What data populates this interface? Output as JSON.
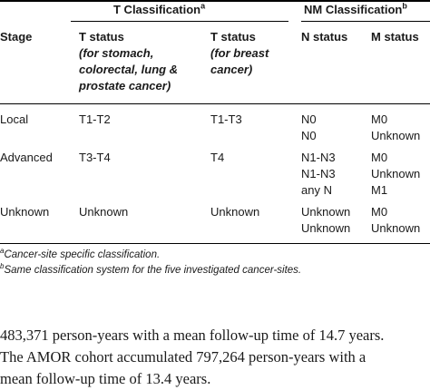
{
  "header": {
    "group_t": "T Classification",
    "group_t_sup": "a",
    "group_nm": "NM Classification",
    "group_nm_sup": "b",
    "col_stage": "Stage",
    "col_t1_title": "T status",
    "col_t1_sub": [
      "(for stomach,",
      "colorectal, lung &",
      "prostate cancer)"
    ],
    "col_t2_title": "T status",
    "col_t2_sub": [
      "(for breast",
      "cancer)"
    ],
    "col_n": "N status",
    "col_m": "M status"
  },
  "rows": [
    {
      "stage": "Local",
      "t1": "T1-T2",
      "t2": "T1-T3",
      "n": [
        "N0",
        "N0"
      ],
      "m": [
        "M0",
        "Unknown"
      ]
    },
    {
      "stage": "Advanced",
      "t1": "T3-T4",
      "t2": "T4",
      "n": [
        "N1-N3",
        "N1-N3",
        "any N"
      ],
      "m": [
        "M0",
        "Unknown",
        "M1"
      ]
    },
    {
      "stage": "Unknown",
      "t1": "Unknown",
      "t2": "Unknown",
      "n": [
        "Unknown",
        "Unknown"
      ],
      "m": [
        "M0",
        "Unknown"
      ]
    }
  ],
  "footnotes": {
    "a_mark": "a",
    "a_text": "Cancer-site specific classification.",
    "b_mark": "b",
    "b_text": "Same classification system for the five investigated cancer-sites."
  },
  "body_text": [
    "483,371 person-years with a mean follow-up time of 14.7 years.",
    "The AMOR cohort accumulated 797,264 person-years with a",
    "mean follow-up time of 13.4 years."
  ]
}
